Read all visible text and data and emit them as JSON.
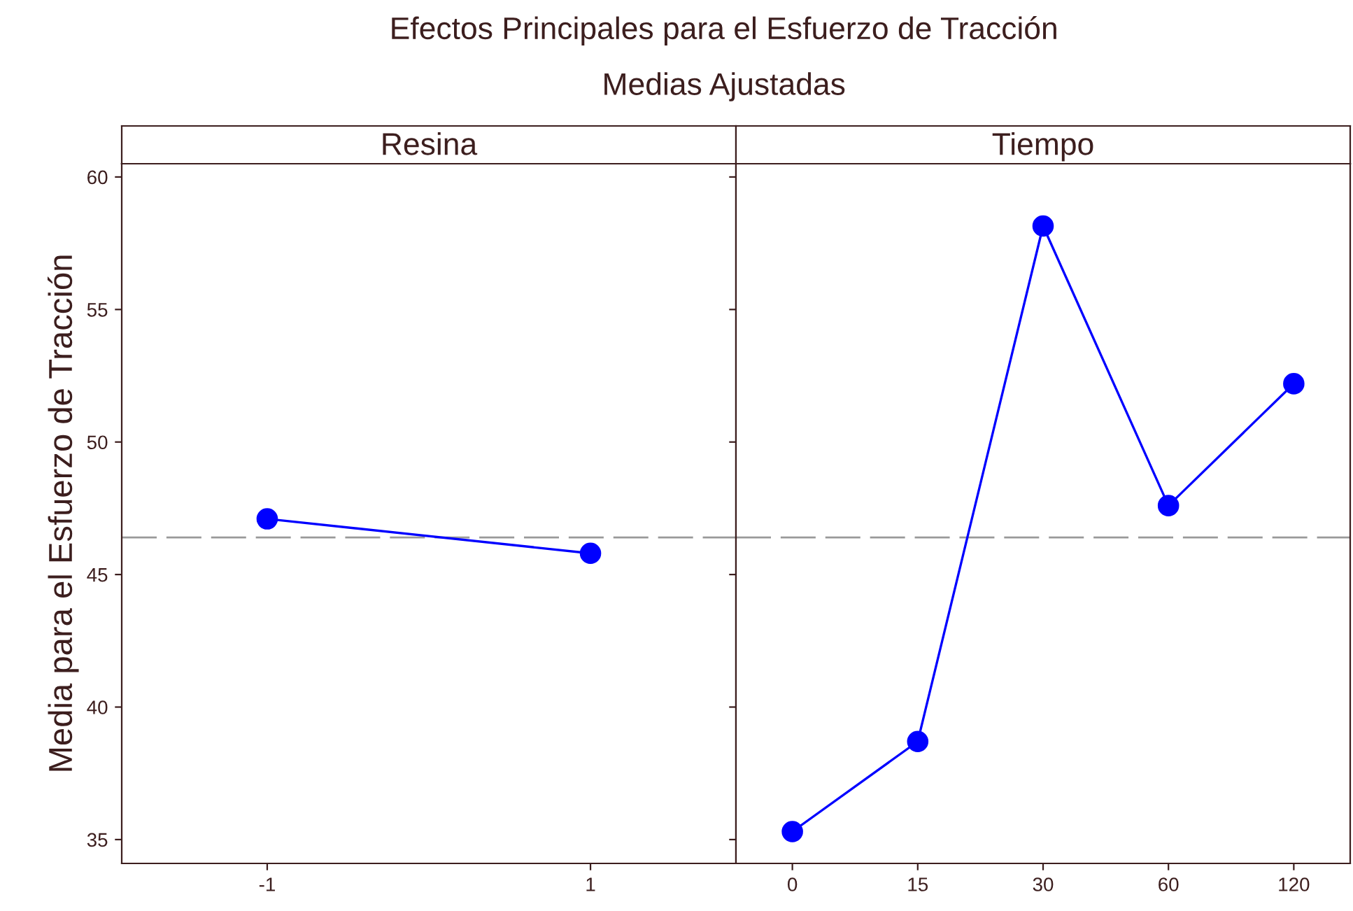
{
  "chart_data": [
    {
      "type": "line",
      "title": "Resina",
      "ylabel": "Media para el Esfuerzo de Tracción",
      "annotations": [
        "Efectos Principales para el Esfuerzo de Tracción",
        "Medias Ajustadas"
      ],
      "categories": [
        "-1",
        "1"
      ],
      "series": [
        {
          "color": "#0000ff",
          "values": [
            47.1,
            45.8
          ]
        }
      ],
      "ylim": [
        34.1,
        60.5
      ],
      "yticks": [
        35,
        40,
        45,
        50,
        55,
        60
      ],
      "marker": "circle",
      "line_style": "solid",
      "grid": false,
      "legend": false,
      "ref_lines": [
        {
          "axis": "y",
          "value": 46.4,
          "color": "#999999",
          "line_style": "dashed"
        }
      ]
    },
    {
      "type": "line",
      "title": "Tiempo",
      "categories": [
        "0",
        "15",
        "30",
        "60",
        "120"
      ],
      "series": [
        {
          "color": "#0000ff",
          "values": [
            35.3,
            38.7,
            58.15,
            47.6,
            52.2
          ]
        }
      ],
      "ylim": [
        34.1,
        60.5
      ],
      "yticks": [
        35,
        40,
        45,
        50,
        55,
        60
      ],
      "tick_labels": "x",
      "marker": "circle",
      "line_style": "solid",
      "grid": false,
      "legend": false,
      "ref_lines": [
        {
          "axis": "y",
          "value": 46.4,
          "color": "#999999",
          "line_style": "dashed"
        }
      ]
    }
  ]
}
